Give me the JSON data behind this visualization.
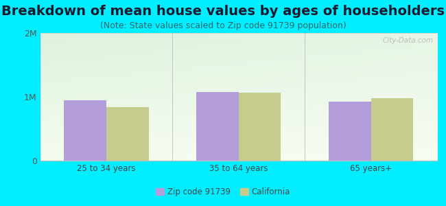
{
  "title": "Breakdown of mean house values by ages of householders",
  "subtitle": "(Note: State values scaled to Zip code 91739 population)",
  "categories": [
    "25 to 34 years",
    "35 to 64 years",
    "65 years+"
  ],
  "zip_values": [
    950000,
    1080000,
    920000
  ],
  "ca_values": [
    840000,
    1060000,
    980000
  ],
  "zip_color": "#b39ddb",
  "ca_color": "#c5cc8e",
  "background_outer": "#00eeff",
  "ylim": [
    0,
    2000000
  ],
  "yticks": [
    0,
    1000000,
    2000000
  ],
  "ytick_labels": [
    "0",
    "1M",
    "2M"
  ],
  "legend_zip_label": "Zip code 91739",
  "legend_ca_label": "California",
  "title_fontsize": 14,
  "subtitle_fontsize": 9,
  "bar_width": 0.32
}
